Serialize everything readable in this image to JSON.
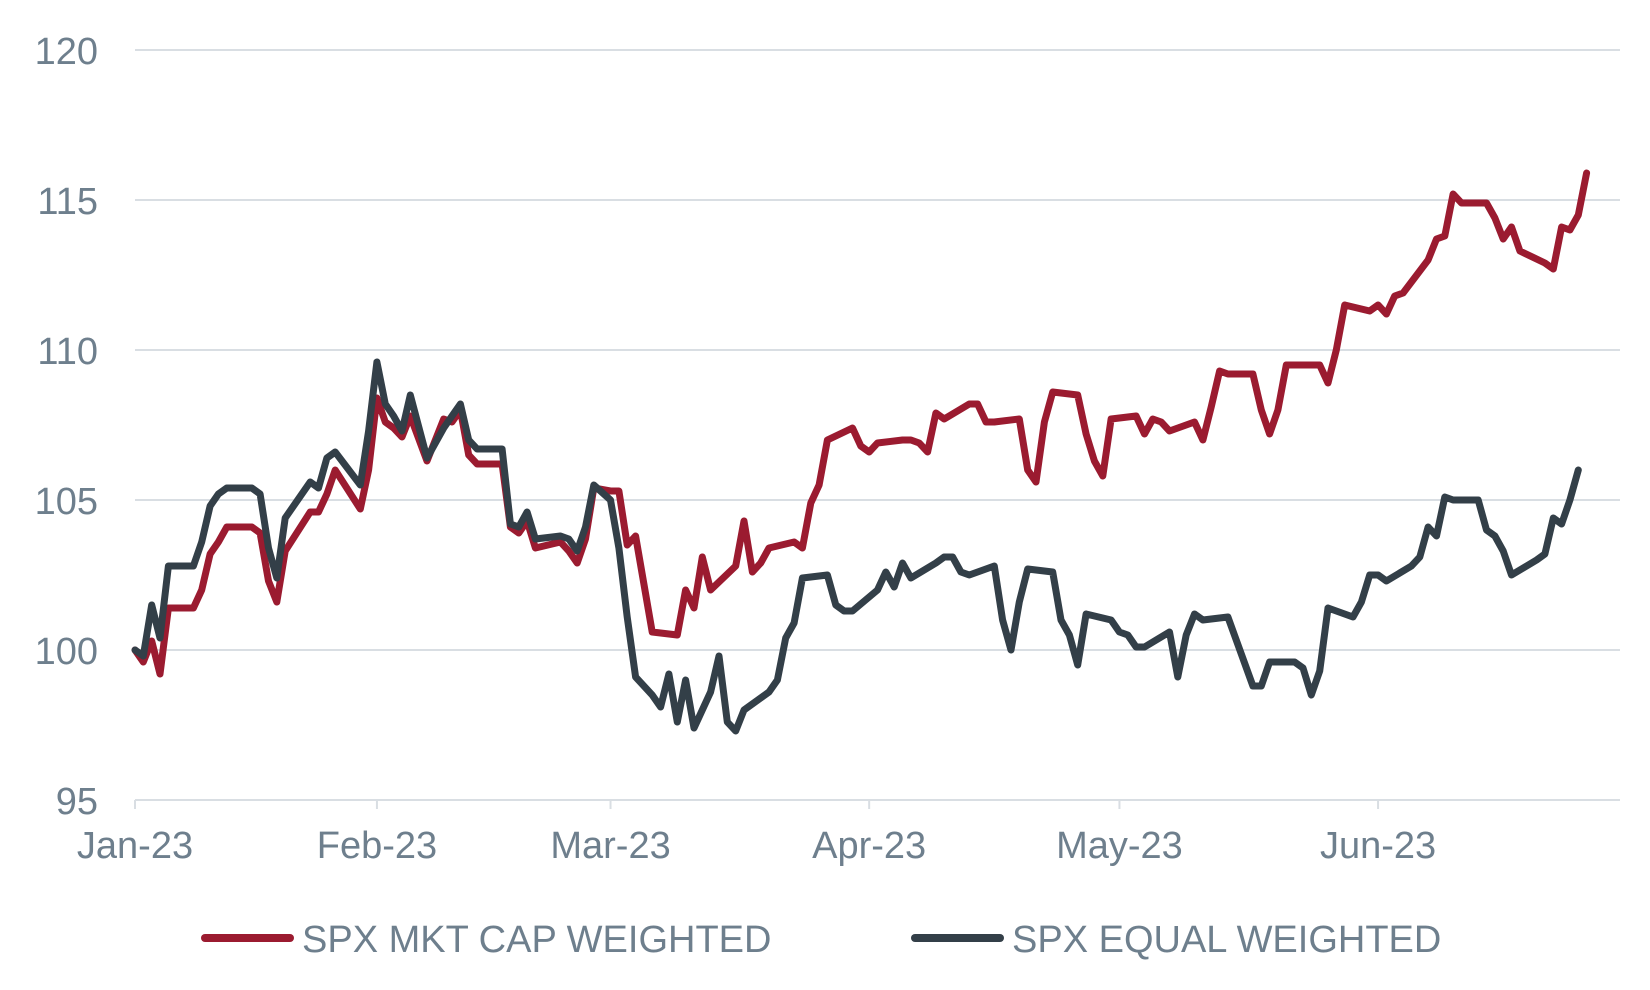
{
  "chart_data": {
    "type": "line",
    "title": "",
    "xlabel": "",
    "ylabel": "",
    "ylim": [
      95,
      120
    ],
    "yticks": [
      95,
      100,
      105,
      110,
      115,
      120
    ],
    "xlim": [
      "2023-01-03",
      "2023-06-30"
    ],
    "xtick_labels": [
      {
        "date": "2023-01-03",
        "label": "Jan-23"
      },
      {
        "date": "2023-02-01",
        "label": "Feb-23"
      },
      {
        "date": "2023-03-01",
        "label": "Mar-23"
      },
      {
        "date": "2023-04-01",
        "label": "Apr-23"
      },
      {
        "date": "2023-05-01",
        "label": "May-23"
      },
      {
        "date": "2023-06-01",
        "label": "Jun-23"
      }
    ],
    "grid": true,
    "legend_position": "bottom",
    "colors": {
      "mkt_cap": "#9b1b30",
      "equal": "#333f48",
      "axis_text": "#6e7f8d",
      "grid": "#d9dee3"
    },
    "series": [
      {
        "name": "SPX MKT CAP WEIGHTED",
        "color": "#9b1b30",
        "points": [
          [
            "2023-01-03",
            100.0
          ],
          [
            "2023-01-04",
            99.6
          ],
          [
            "2023-01-05",
            100.3
          ],
          [
            "2023-01-06",
            99.2
          ],
          [
            "2023-01-07",
            101.4
          ],
          [
            "2023-01-10",
            101.4
          ],
          [
            "2023-01-11",
            102.0
          ],
          [
            "2023-01-12",
            103.2
          ],
          [
            "2023-01-13",
            103.6
          ],
          [
            "2023-01-14",
            104.1
          ],
          [
            "2023-01-17",
            104.1
          ],
          [
            "2023-01-18",
            103.9
          ],
          [
            "2023-01-19",
            102.3
          ],
          [
            "2023-01-20",
            101.6
          ],
          [
            "2023-01-21",
            103.3
          ],
          [
            "2023-01-24",
            104.6
          ],
          [
            "2023-01-25",
            104.6
          ],
          [
            "2023-01-26",
            105.2
          ],
          [
            "2023-01-27",
            106.0
          ],
          [
            "2023-01-30",
            104.7
          ],
          [
            "2023-01-31",
            106.0
          ],
          [
            "2023-02-01",
            108.4
          ],
          [
            "2023-02-02",
            107.6
          ],
          [
            "2023-02-03",
            107.4
          ],
          [
            "2023-02-04",
            107.1
          ],
          [
            "2023-02-05",
            107.8
          ],
          [
            "2023-02-07",
            106.3
          ],
          [
            "2023-02-09",
            107.7
          ],
          [
            "2023-02-10",
            107.6
          ],
          [
            "2023-02-11",
            108.0
          ],
          [
            "2023-02-12",
            106.5
          ],
          [
            "2023-02-13",
            106.2
          ],
          [
            "2023-02-16",
            106.2
          ],
          [
            "2023-02-17",
            104.1
          ],
          [
            "2023-02-18",
            103.9
          ],
          [
            "2023-02-19",
            104.3
          ],
          [
            "2023-02-20",
            103.4
          ],
          [
            "2023-02-23",
            103.6
          ],
          [
            "2023-02-24",
            103.3
          ],
          [
            "2023-02-25",
            102.9
          ],
          [
            "2023-02-26",
            103.7
          ],
          [
            "2023-02-27",
            105.4
          ],
          [
            "2023-03-01",
            105.3
          ],
          [
            "2023-03-02",
            105.3
          ],
          [
            "2023-03-03",
            103.5
          ],
          [
            "2023-03-04",
            103.8
          ],
          [
            "2023-03-05",
            102.2
          ],
          [
            "2023-03-06",
            100.6
          ],
          [
            "2023-03-09",
            100.5
          ],
          [
            "2023-03-10",
            102.0
          ],
          [
            "2023-03-11",
            101.4
          ],
          [
            "2023-03-12",
            103.1
          ],
          [
            "2023-03-13",
            102.0
          ],
          [
            "2023-03-16",
            102.8
          ],
          [
            "2023-03-17",
            104.3
          ],
          [
            "2023-03-18",
            102.6
          ],
          [
            "2023-03-19",
            102.9
          ],
          [
            "2023-03-20",
            103.4
          ],
          [
            "2023-03-23",
            103.6
          ],
          [
            "2023-03-24",
            103.4
          ],
          [
            "2023-03-25",
            104.9
          ],
          [
            "2023-03-26",
            105.5
          ],
          [
            "2023-03-27",
            107.0
          ],
          [
            "2023-03-30",
            107.4
          ],
          [
            "2023-03-31",
            106.8
          ],
          [
            "2023-04-01",
            106.6
          ],
          [
            "2023-04-02",
            106.9
          ],
          [
            "2023-04-05",
            107.0
          ],
          [
            "2023-04-06",
            107.0
          ],
          [
            "2023-04-07",
            106.9
          ],
          [
            "2023-04-08",
            106.6
          ],
          [
            "2023-04-09",
            107.9
          ],
          [
            "2023-04-10",
            107.7
          ],
          [
            "2023-04-13",
            108.2
          ],
          [
            "2023-04-14",
            108.2
          ],
          [
            "2023-04-15",
            107.6
          ],
          [
            "2023-04-16",
            107.6
          ],
          [
            "2023-04-19",
            107.7
          ],
          [
            "2023-04-20",
            106.0
          ],
          [
            "2023-04-21",
            105.6
          ],
          [
            "2023-04-22",
            107.6
          ],
          [
            "2023-04-23",
            108.6
          ],
          [
            "2023-04-26",
            108.5
          ],
          [
            "2023-04-27",
            107.2
          ],
          [
            "2023-04-28",
            106.3
          ],
          [
            "2023-04-29",
            105.8
          ],
          [
            "2023-04-30",
            107.7
          ],
          [
            "2023-05-03",
            107.8
          ],
          [
            "2023-05-04",
            107.2
          ],
          [
            "2023-05-05",
            107.7
          ],
          [
            "2023-05-06",
            107.6
          ],
          [
            "2023-05-07",
            107.3
          ],
          [
            "2023-05-10",
            107.6
          ],
          [
            "2023-05-11",
            107.0
          ],
          [
            "2023-05-12",
            108.1
          ],
          [
            "2023-05-13",
            109.3
          ],
          [
            "2023-05-14",
            109.2
          ],
          [
            "2023-05-17",
            109.2
          ],
          [
            "2023-05-18",
            108.0
          ],
          [
            "2023-05-19",
            107.2
          ],
          [
            "2023-05-20",
            108.0
          ],
          [
            "2023-05-21",
            109.5
          ],
          [
            "2023-05-24",
            109.5
          ],
          [
            "2023-05-25",
            109.5
          ],
          [
            "2023-05-26",
            108.9
          ],
          [
            "2023-05-27",
            110.0
          ],
          [
            "2023-05-28",
            111.5
          ],
          [
            "2023-05-31",
            111.3
          ],
          [
            "2023-06-01",
            111.5
          ],
          [
            "2023-06-02",
            111.2
          ],
          [
            "2023-06-03",
            111.8
          ],
          [
            "2023-06-04",
            111.9
          ],
          [
            "2023-06-07",
            113.0
          ],
          [
            "2023-06-08",
            113.7
          ],
          [
            "2023-06-09",
            113.8
          ],
          [
            "2023-06-10",
            115.2
          ],
          [
            "2023-06-11",
            114.9
          ],
          [
            "2023-06-14",
            114.9
          ],
          [
            "2023-06-15",
            114.4
          ],
          [
            "2023-06-16",
            113.7
          ],
          [
            "2023-06-17",
            114.1
          ],
          [
            "2023-06-18",
            113.3
          ],
          [
            "2023-06-21",
            112.9
          ],
          [
            "2023-06-22",
            112.7
          ],
          [
            "2023-06-23",
            114.1
          ],
          [
            "2023-06-24",
            114.0
          ],
          [
            "2023-06-25",
            114.5
          ],
          [
            "2023-06-26",
            115.9
          ]
        ]
      },
      {
        "name": "SPX EQUAL WEIGHTED",
        "color": "#333f48",
        "points": [
          [
            "2023-01-03",
            100.0
          ],
          [
            "2023-01-04",
            99.8
          ],
          [
            "2023-01-05",
            101.5
          ],
          [
            "2023-01-06",
            100.4
          ],
          [
            "2023-01-07",
            102.8
          ],
          [
            "2023-01-10",
            102.8
          ],
          [
            "2023-01-11",
            103.6
          ],
          [
            "2023-01-12",
            104.8
          ],
          [
            "2023-01-13",
            105.2
          ],
          [
            "2023-01-14",
            105.4
          ],
          [
            "2023-01-17",
            105.4
          ],
          [
            "2023-01-18",
            105.2
          ],
          [
            "2023-01-19",
            103.4
          ],
          [
            "2023-01-20",
            102.4
          ],
          [
            "2023-01-21",
            104.4
          ],
          [
            "2023-01-24",
            105.6
          ],
          [
            "2023-01-25",
            105.4
          ],
          [
            "2023-01-26",
            106.4
          ],
          [
            "2023-01-27",
            106.6
          ],
          [
            "2023-01-30",
            105.5
          ],
          [
            "2023-01-31",
            107.3
          ],
          [
            "2023-02-01",
            109.6
          ],
          [
            "2023-02-02",
            108.2
          ],
          [
            "2023-02-03",
            107.8
          ],
          [
            "2023-02-04",
            107.3
          ],
          [
            "2023-02-05",
            108.5
          ],
          [
            "2023-02-07",
            106.4
          ],
          [
            "2023-02-09",
            107.4
          ],
          [
            "2023-02-10",
            107.8
          ],
          [
            "2023-02-11",
            108.2
          ],
          [
            "2023-02-12",
            107.0
          ],
          [
            "2023-02-13",
            106.7
          ],
          [
            "2023-02-16",
            106.7
          ],
          [
            "2023-02-17",
            104.2
          ],
          [
            "2023-02-18",
            104.1
          ],
          [
            "2023-02-19",
            104.6
          ],
          [
            "2023-02-20",
            103.7
          ],
          [
            "2023-02-23",
            103.8
          ],
          [
            "2023-02-24",
            103.7
          ],
          [
            "2023-02-25",
            103.3
          ],
          [
            "2023-02-26",
            104.1
          ],
          [
            "2023-02-27",
            105.5
          ],
          [
            "2023-03-01",
            105.0
          ],
          [
            "2023-03-02",
            103.4
          ],
          [
            "2023-03-03",
            101.1
          ],
          [
            "2023-03-04",
            99.1
          ],
          [
            "2023-03-06",
            98.5
          ],
          [
            "2023-03-07",
            98.1
          ],
          [
            "2023-03-08",
            99.2
          ],
          [
            "2023-03-09",
            97.6
          ],
          [
            "2023-03-10",
            99.0
          ],
          [
            "2023-03-11",
            97.4
          ],
          [
            "2023-03-13",
            98.6
          ],
          [
            "2023-03-14",
            99.8
          ],
          [
            "2023-03-15",
            97.6
          ],
          [
            "2023-03-16",
            97.3
          ],
          [
            "2023-03-17",
            98.0
          ],
          [
            "2023-03-20",
            98.6
          ],
          [
            "2023-03-21",
            99.0
          ],
          [
            "2023-03-22",
            100.4
          ],
          [
            "2023-03-23",
            100.9
          ],
          [
            "2023-03-24",
            102.4
          ],
          [
            "2023-03-27",
            102.5
          ],
          [
            "2023-03-28",
            101.5
          ],
          [
            "2023-03-29",
            101.3
          ],
          [
            "2023-03-30",
            101.3
          ],
          [
            "2023-04-02",
            102.0
          ],
          [
            "2023-04-03",
            102.6
          ],
          [
            "2023-04-04",
            102.1
          ],
          [
            "2023-04-05",
            102.9
          ],
          [
            "2023-04-06",
            102.4
          ],
          [
            "2023-04-09",
            102.9
          ],
          [
            "2023-04-10",
            103.1
          ],
          [
            "2023-04-11",
            103.1
          ],
          [
            "2023-04-12",
            102.6
          ],
          [
            "2023-04-13",
            102.5
          ],
          [
            "2023-04-16",
            102.8
          ],
          [
            "2023-04-17",
            101.0
          ],
          [
            "2023-04-18",
            100.0
          ],
          [
            "2023-04-19",
            101.6
          ],
          [
            "2023-04-20",
            102.7
          ],
          [
            "2023-04-23",
            102.6
          ],
          [
            "2023-04-24",
            101.0
          ],
          [
            "2023-04-25",
            100.5
          ],
          [
            "2023-04-26",
            99.5
          ],
          [
            "2023-04-27",
            101.2
          ],
          [
            "2023-04-30",
            101.0
          ],
          [
            "2023-05-01",
            100.6
          ],
          [
            "2023-05-02",
            100.5
          ],
          [
            "2023-05-03",
            100.1
          ],
          [
            "2023-05-04",
            100.1
          ],
          [
            "2023-05-07",
            100.6
          ],
          [
            "2023-05-08",
            99.1
          ],
          [
            "2023-05-09",
            100.5
          ],
          [
            "2023-05-10",
            101.2
          ],
          [
            "2023-05-11",
            101.0
          ],
          [
            "2023-05-14",
            101.1
          ],
          [
            "2023-05-17",
            98.8
          ],
          [
            "2023-05-18",
            98.8
          ],
          [
            "2023-05-19",
            99.6
          ],
          [
            "2023-05-22",
            99.6
          ],
          [
            "2023-05-23",
            99.4
          ],
          [
            "2023-05-24",
            98.5
          ],
          [
            "2023-05-25",
            99.3
          ],
          [
            "2023-05-26",
            101.4
          ],
          [
            "2023-05-29",
            101.1
          ],
          [
            "2023-05-30",
            101.6
          ],
          [
            "2023-05-31",
            102.5
          ],
          [
            "2023-06-01",
            102.5
          ],
          [
            "2023-06-02",
            102.3
          ],
          [
            "2023-06-05",
            102.8
          ],
          [
            "2023-06-06",
            103.1
          ],
          [
            "2023-06-07",
            104.1
          ],
          [
            "2023-06-08",
            103.8
          ],
          [
            "2023-06-09",
            105.1
          ],
          [
            "2023-06-10",
            105.0
          ],
          [
            "2023-06-13",
            105.0
          ],
          [
            "2023-06-14",
            104.0
          ],
          [
            "2023-06-15",
            103.8
          ],
          [
            "2023-06-16",
            103.3
          ],
          [
            "2023-06-17",
            102.5
          ],
          [
            "2023-06-20",
            103.0
          ],
          [
            "2023-06-21",
            103.2
          ],
          [
            "2023-06-22",
            104.4
          ],
          [
            "2023-06-23",
            104.2
          ],
          [
            "2023-06-24",
            105.0
          ],
          [
            "2023-06-25",
            106.0
          ]
        ]
      }
    ]
  }
}
